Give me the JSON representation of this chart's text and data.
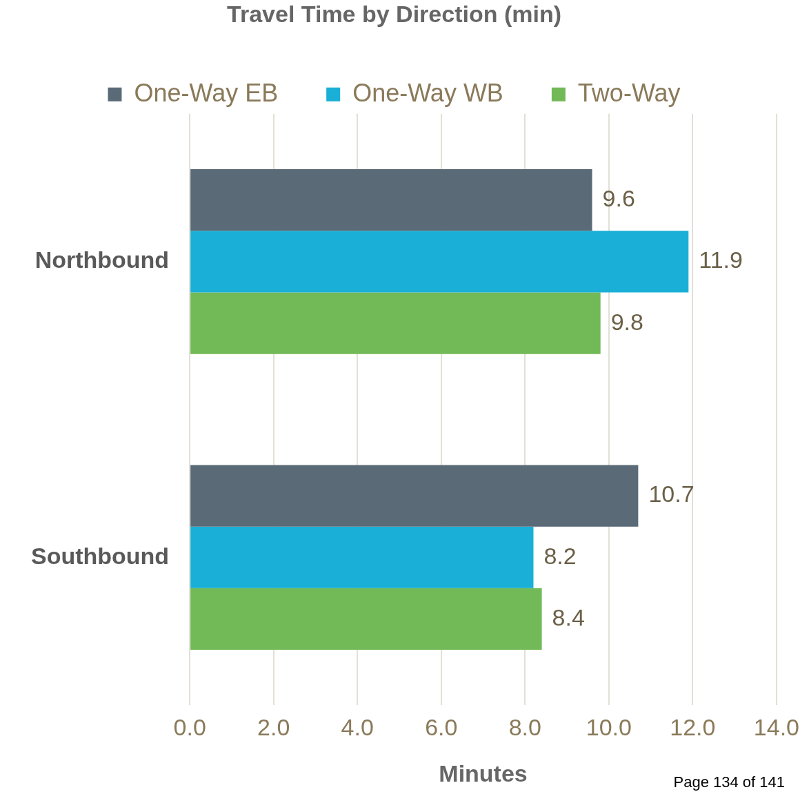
{
  "chart_data": {
    "type": "bar",
    "orientation": "horizontal",
    "title": "Travel Time by Direction (min)",
    "xlabel": "Minutes",
    "categories": [
      "Northbound",
      "Southbound"
    ],
    "series": [
      {
        "name": "One-Way EB",
        "color": "#5a6b77",
        "values": [
          9.6,
          10.7
        ]
      },
      {
        "name": "One-Way WB",
        "color": "#1aafd6",
        "values": [
          11.9,
          8.2
        ]
      },
      {
        "name": "Two-Way",
        "color": "#72b957",
        "values": [
          9.8,
          8.4
        ]
      }
    ],
    "xlim": [
      0,
      14
    ],
    "xticks": [
      {
        "value": 0,
        "label": "0.0"
      },
      {
        "value": 2,
        "label": "2.0"
      },
      {
        "value": 4,
        "label": "4.0"
      },
      {
        "value": 6,
        "label": "6.0"
      },
      {
        "value": 8,
        "label": "8.0"
      },
      {
        "value": 10,
        "label": "10.0"
      },
      {
        "value": 12,
        "label": "12.0"
      },
      {
        "value": 14,
        "label": "14.0"
      }
    ],
    "grid": "x",
    "legend": "top",
    "data_labels": true,
    "annotations": [
      "Page 134 of 141"
    ]
  }
}
